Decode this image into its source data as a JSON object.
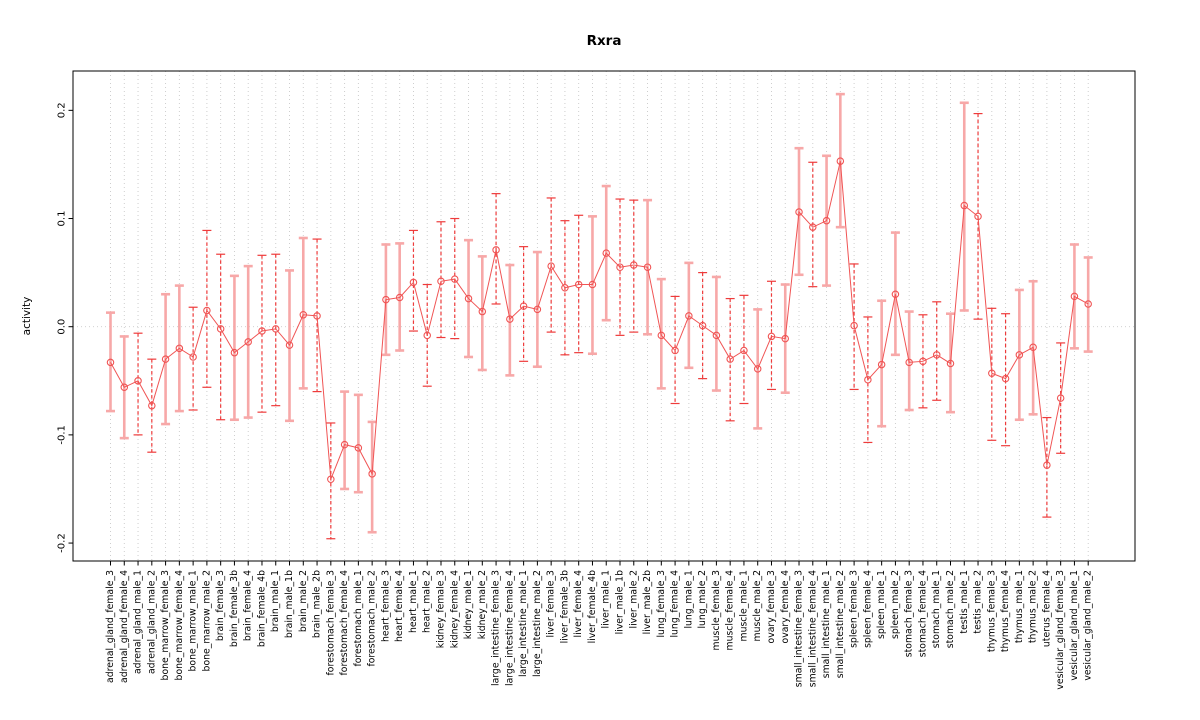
{
  "chart_data": {
    "type": "errorbar-line",
    "title": "Rxra",
    "ylabel": "activity",
    "xlabel": "",
    "ylim": [
      -0.22,
      0.235
    ],
    "yticks": [
      0.2,
      0.1,
      0.0,
      -0.1,
      -0.2
    ],
    "ytick_labels": [
      "0.2",
      "0.1",
      "0.0",
      "-0.1",
      "-0.2"
    ],
    "grid": "vertical-dotted-per-category-plus-zero-line",
    "legend": "none",
    "categories": [
      "adrenal_gland_female_3",
      "adrenal_gland_female_4",
      "adrenal_gland_male_1",
      "adrenal_gland_male_2",
      "bone_marrow_female_3",
      "bone_marrow_female_4",
      "bone_marrow_male_1",
      "bone_marrow_male_2",
      "brain_female_3",
      "brain_female_3b",
      "brain_female_4",
      "brain_female_4b",
      "brain_male_1",
      "brain_male_1b",
      "brain_male_2",
      "brain_male_2b",
      "forestomach_female_3",
      "forestomach_female_4",
      "forestomach_male_1",
      "forestomach_male_2",
      "heart_female_3",
      "heart_female_4",
      "heart_male_1",
      "heart_male_2",
      "kidney_female_3",
      "kidney_female_4",
      "kidney_male_1",
      "kidney_male_2",
      "large_intestine_female_3",
      "large_intestine_female_4",
      "large_intestine_male_1",
      "large_intestine_male_2",
      "liver_female_3",
      "liver_female_3b",
      "liver_female_4",
      "liver_female_4b",
      "liver_male_1",
      "liver_male_1b",
      "liver_male_2",
      "liver_male_2b",
      "lung_female_3",
      "lung_female_4",
      "lung_male_1",
      "lung_male_2",
      "muscle_female_3",
      "muscle_female_4",
      "muscle_male_1",
      "muscle_male_2",
      "ovary_female_3",
      "ovary_female_4",
      "small_intestine_female_3",
      "small_intestine_female_4",
      "small_intestine_male_1",
      "small_intestine_male_2",
      "spleen_female_3",
      "spleen_female_4",
      "spleen_male_1",
      "spleen_male_2",
      "stomach_female_3",
      "stomach_female_4",
      "stomach_male_1",
      "stomach_male_2",
      "testis_male_1",
      "testis_male_2",
      "thymus_female_3",
      "thymus_female_4",
      "thymus_male_1",
      "thymus_male_2",
      "uterus_female_4",
      "vesicular_gland_female_3",
      "vesicular_gland_male_1",
      "vesicular_gland_male_2"
    ],
    "values": [
      -0.033,
      -0.056,
      -0.05,
      -0.073,
      -0.03,
      -0.02,
      -0.028,
      0.015,
      -0.002,
      -0.024,
      -0.014,
      -0.004,
      -0.002,
      -0.017,
      0.011,
      0.01,
      -0.141,
      -0.109,
      -0.112,
      -0.136,
      0.025,
      0.027,
      0.041,
      -0.008,
      0.042,
      0.044,
      0.026,
      0.014,
      0.071,
      0.007,
      0.019,
      0.016,
      0.056,
      0.036,
      0.039,
      0.039,
      0.068,
      0.055,
      0.057,
      0.055,
      -0.008,
      -0.022,
      0.01,
      0.001,
      -0.008,
      -0.03,
      -0.022,
      -0.039,
      -0.009,
      -0.011,
      0.106,
      0.092,
      0.098,
      0.153,
      0.001,
      -0.049,
      -0.035,
      0.03,
      -0.033,
      -0.032,
      -0.026,
      -0.034,
      0.112,
      0.102,
      -0.043,
      -0.048,
      -0.026,
      -0.019,
      -0.128,
      -0.066,
      0.028,
      0.021
    ],
    "err_high": [
      0.013,
      -0.009,
      -0.006,
      -0.03,
      0.03,
      0.038,
      0.018,
      0.089,
      0.067,
      0.047,
      0.056,
      0.066,
      0.067,
      0.052,
      0.082,
      0.081,
      -0.089,
      -0.06,
      -0.063,
      -0.088,
      0.076,
      0.077,
      0.089,
      0.039,
      0.097,
      0.1,
      0.08,
      0.065,
      0.123,
      0.057,
      0.074,
      0.069,
      0.119,
      0.098,
      0.103,
      0.102,
      0.13,
      0.118,
      0.117,
      0.117,
      0.044,
      0.028,
      0.059,
      0.05,
      0.046,
      0.026,
      0.029,
      0.016,
      0.042,
      0.039,
      0.165,
      0.152,
      0.158,
      0.215,
      0.058,
      0.009,
      0.024,
      0.087,
      0.014,
      0.011,
      0.023,
      0.012,
      0.207,
      0.197,
      0.017,
      0.012,
      0.034,
      0.042,
      -0.084,
      -0.015,
      0.076,
      0.064
    ],
    "err_low": [
      -0.078,
      -0.103,
      -0.1,
      -0.116,
      -0.09,
      -0.078,
      -0.077,
      -0.056,
      -0.086,
      -0.086,
      -0.084,
      -0.079,
      -0.073,
      -0.087,
      -0.057,
      -0.06,
      -0.196,
      -0.15,
      -0.153,
      -0.19,
      -0.026,
      -0.022,
      -0.004,
      -0.055,
      -0.01,
      -0.011,
      -0.028,
      -0.04,
      0.021,
      -0.045,
      -0.032,
      -0.037,
      -0.005,
      -0.026,
      -0.024,
      -0.025,
      0.006,
      -0.008,
      -0.005,
      -0.007,
      -0.057,
      -0.071,
      -0.038,
      -0.048,
      -0.059,
      -0.087,
      -0.071,
      -0.094,
      -0.058,
      -0.061,
      0.048,
      0.037,
      0.038,
      0.092,
      -0.058,
      -0.107,
      -0.092,
      -0.026,
      -0.077,
      -0.075,
      -0.068,
      -0.079,
      0.015,
      0.007,
      -0.105,
      -0.11,
      -0.086,
      -0.081,
      -0.176,
      -0.117,
      -0.02,
      -0.023
    ],
    "bar_styles": [
      "solid",
      "solid",
      "dashed",
      "dashed",
      "solid",
      "solid",
      "dashed",
      "dashed",
      "dashed",
      "solid",
      "solid",
      "dashed",
      "dashed",
      "solid",
      "solid",
      "dashed",
      "dashed",
      "solid",
      "solid",
      "solid",
      "solid",
      "solid",
      "dashed",
      "dashed",
      "dashed",
      "dashed",
      "solid",
      "solid",
      "dashed",
      "solid",
      "dashed",
      "solid",
      "dashed",
      "dashed",
      "dashed",
      "solid",
      "solid",
      "dashed",
      "dashed",
      "solid",
      "solid",
      "dashed",
      "solid",
      "dashed",
      "solid",
      "dashed",
      "dashed",
      "solid",
      "dashed",
      "solid",
      "solid",
      "dashed",
      "solid",
      "solid",
      "dashed",
      "dashed",
      "solid",
      "solid",
      "solid",
      "dashed",
      "dashed",
      "solid",
      "solid",
      "dashed",
      "dashed",
      "dashed",
      "solid",
      "solid",
      "dashed",
      "dashed",
      "solid",
      "solid"
    ],
    "colors": {
      "series": "#f05454",
      "bar_solid": "#f7a8a8",
      "bar_dashed": "#ee3b3b",
      "grid": "#c9c9c9",
      "zero_line": "#cccccc",
      "axis": "#000000"
    }
  }
}
